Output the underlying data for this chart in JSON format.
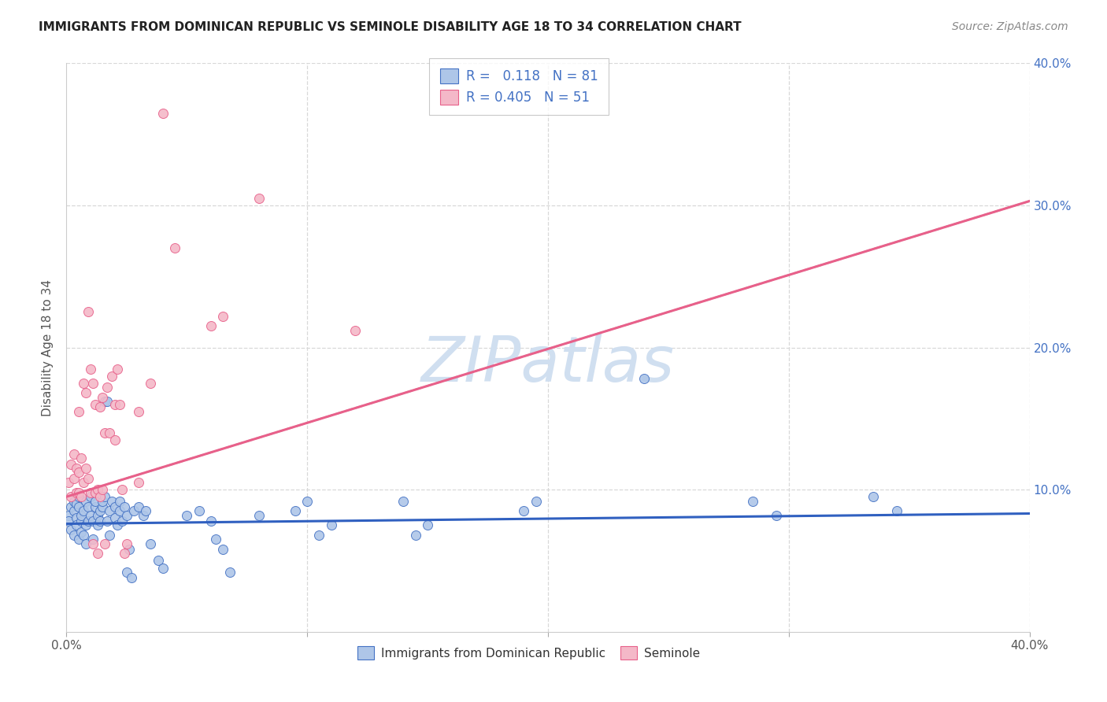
{
  "title": "IMMIGRANTS FROM DOMINICAN REPUBLIC VS SEMINOLE DISABILITY AGE 18 TO 34 CORRELATION CHART",
  "source": "Source: ZipAtlas.com",
  "ylabel": "Disability Age 18 to 34",
  "xlim": [
    0.0,
    0.4
  ],
  "ylim": [
    0.0,
    0.4
  ],
  "blue_R": 0.118,
  "blue_N": 81,
  "pink_R": 0.405,
  "pink_N": 51,
  "blue_color": "#aec6e8",
  "pink_color": "#f4b8c8",
  "blue_edge_color": "#4472c4",
  "pink_edge_color": "#e8608a",
  "blue_line_color": "#3060c0",
  "pink_line_color": "#e8608a",
  "dash_color": "#bbbbbb",
  "watermark": "ZIPatlas",
  "watermark_color": "#d0dff0",
  "background_color": "#ffffff",
  "grid_color": "#d8d8d8",
  "title_color": "#222222",
  "source_color": "#888888",
  "axis_color": "#555555",
  "right_axis_color": "#4472c4",
  "legend_text_color": "#4472c4",
  "blue_line_slope": 0.018,
  "blue_line_intercept": 0.076,
  "pink_line_slope": 0.52,
  "pink_line_intercept": 0.095,
  "blue_scatter": [
    [
      0.001,
      0.082
    ],
    [
      0.001,
      0.078
    ],
    [
      0.002,
      0.088
    ],
    [
      0.002,
      0.072
    ],
    [
      0.003,
      0.085
    ],
    [
      0.003,
      0.068
    ],
    [
      0.003,
      0.092
    ],
    [
      0.004,
      0.08
    ],
    [
      0.004,
      0.075
    ],
    [
      0.004,
      0.09
    ],
    [
      0.005,
      0.088
    ],
    [
      0.005,
      0.065
    ],
    [
      0.005,
      0.095
    ],
    [
      0.006,
      0.078
    ],
    [
      0.006,
      0.082
    ],
    [
      0.006,
      0.07
    ],
    [
      0.007,
      0.085
    ],
    [
      0.007,
      0.068
    ],
    [
      0.008,
      0.092
    ],
    [
      0.008,
      0.075
    ],
    [
      0.008,
      0.062
    ],
    [
      0.009,
      0.088
    ],
    [
      0.009,
      0.078
    ],
    [
      0.01,
      0.082
    ],
    [
      0.01,
      0.095
    ],
    [
      0.011,
      0.078
    ],
    [
      0.011,
      0.065
    ],
    [
      0.012,
      0.088
    ],
    [
      0.012,
      0.092
    ],
    [
      0.013,
      0.075
    ],
    [
      0.013,
      0.082
    ],
    [
      0.014,
      0.078
    ],
    [
      0.014,
      0.085
    ],
    [
      0.015,
      0.088
    ],
    [
      0.015,
      0.092
    ],
    [
      0.016,
      0.095
    ],
    [
      0.016,
      0.162
    ],
    [
      0.017,
      0.078
    ],
    [
      0.017,
      0.162
    ],
    [
      0.018,
      0.085
    ],
    [
      0.018,
      0.068
    ],
    [
      0.019,
      0.092
    ],
    [
      0.02,
      0.08
    ],
    [
      0.02,
      0.088
    ],
    [
      0.021,
      0.075
    ],
    [
      0.022,
      0.085
    ],
    [
      0.022,
      0.092
    ],
    [
      0.023,
      0.078
    ],
    [
      0.024,
      0.088
    ],
    [
      0.025,
      0.082
    ],
    [
      0.025,
      0.042
    ],
    [
      0.026,
      0.058
    ],
    [
      0.027,
      0.038
    ],
    [
      0.028,
      0.085
    ],
    [
      0.03,
      0.088
    ],
    [
      0.032,
      0.082
    ],
    [
      0.033,
      0.085
    ],
    [
      0.035,
      0.062
    ],
    [
      0.038,
      0.05
    ],
    [
      0.04,
      0.045
    ],
    [
      0.05,
      0.082
    ],
    [
      0.055,
      0.085
    ],
    [
      0.06,
      0.078
    ],
    [
      0.062,
      0.065
    ],
    [
      0.065,
      0.058
    ],
    [
      0.068,
      0.042
    ],
    [
      0.08,
      0.082
    ],
    [
      0.095,
      0.085
    ],
    [
      0.1,
      0.092
    ],
    [
      0.105,
      0.068
    ],
    [
      0.11,
      0.075
    ],
    [
      0.14,
      0.092
    ],
    [
      0.145,
      0.068
    ],
    [
      0.15,
      0.075
    ],
    [
      0.19,
      0.085
    ],
    [
      0.195,
      0.092
    ],
    [
      0.24,
      0.178
    ],
    [
      0.285,
      0.092
    ],
    [
      0.295,
      0.082
    ],
    [
      0.335,
      0.095
    ],
    [
      0.345,
      0.085
    ]
  ],
  "pink_scatter": [
    [
      0.001,
      0.105
    ],
    [
      0.002,
      0.095
    ],
    [
      0.002,
      0.118
    ],
    [
      0.003,
      0.108
    ],
    [
      0.003,
      0.125
    ],
    [
      0.004,
      0.098
    ],
    [
      0.004,
      0.115
    ],
    [
      0.005,
      0.112
    ],
    [
      0.005,
      0.098
    ],
    [
      0.005,
      0.155
    ],
    [
      0.006,
      0.122
    ],
    [
      0.006,
      0.095
    ],
    [
      0.007,
      0.105
    ],
    [
      0.007,
      0.175
    ],
    [
      0.008,
      0.115
    ],
    [
      0.008,
      0.168
    ],
    [
      0.009,
      0.108
    ],
    [
      0.009,
      0.225
    ],
    [
      0.01,
      0.098
    ],
    [
      0.01,
      0.185
    ],
    [
      0.011,
      0.175
    ],
    [
      0.011,
      0.062
    ],
    [
      0.012,
      0.098
    ],
    [
      0.012,
      0.16
    ],
    [
      0.013,
      0.055
    ],
    [
      0.013,
      0.1
    ],
    [
      0.014,
      0.095
    ],
    [
      0.014,
      0.158
    ],
    [
      0.015,
      0.165
    ],
    [
      0.015,
      0.1
    ],
    [
      0.016,
      0.14
    ],
    [
      0.016,
      0.062
    ],
    [
      0.017,
      0.172
    ],
    [
      0.018,
      0.14
    ],
    [
      0.019,
      0.18
    ],
    [
      0.02,
      0.16
    ],
    [
      0.02,
      0.135
    ],
    [
      0.021,
      0.185
    ],
    [
      0.022,
      0.16
    ],
    [
      0.023,
      0.1
    ],
    [
      0.024,
      0.055
    ],
    [
      0.025,
      0.062
    ],
    [
      0.03,
      0.155
    ],
    [
      0.03,
      0.105
    ],
    [
      0.035,
      0.175
    ],
    [
      0.04,
      0.365
    ],
    [
      0.045,
      0.27
    ],
    [
      0.06,
      0.215
    ],
    [
      0.065,
      0.222
    ],
    [
      0.08,
      0.305
    ],
    [
      0.12,
      0.212
    ]
  ]
}
